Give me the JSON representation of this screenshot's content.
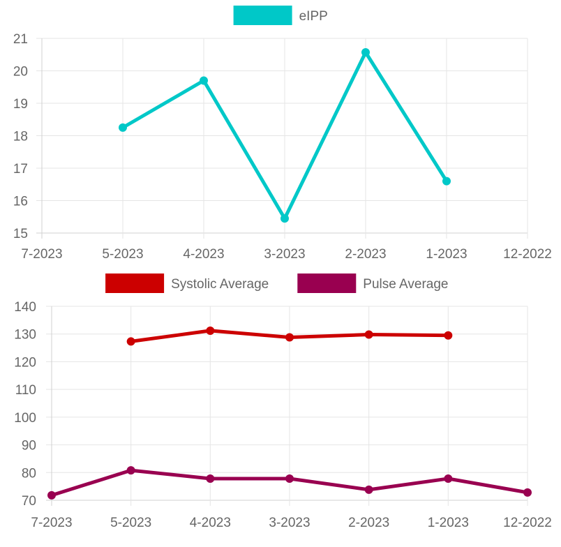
{
  "chart_data": [
    {
      "type": "line",
      "categories": [
        "7-2023",
        "5-2023",
        "4-2023",
        "3-2023",
        "2-2023",
        "1-2023",
        "12-2022"
      ],
      "ylim": [
        15,
        21
      ],
      "yticks": [
        15,
        16,
        17,
        18,
        19,
        20,
        21
      ],
      "legend_position": "top",
      "grid": true,
      "series": [
        {
          "name": "eIPP",
          "color": "#00c8c8",
          "values": [
            null,
            18.25,
            19.7,
            15.45,
            20.57,
            16.6,
            null
          ]
        }
      ]
    },
    {
      "type": "line",
      "categories": [
        "7-2023",
        "5-2023",
        "4-2023",
        "3-2023",
        "2-2023",
        "1-2023",
        "12-2022"
      ],
      "ylim": [
        70,
        140
      ],
      "yticks": [
        70,
        80,
        90,
        100,
        110,
        120,
        130,
        140
      ],
      "legend_position": "top",
      "grid": true,
      "series": [
        {
          "name": "Systolic Average",
          "color": "#cc0000",
          "values": [
            null,
            127.3,
            131.2,
            128.8,
            129.8,
            129.5,
            null
          ]
        },
        {
          "name": "Pulse Average",
          "color": "#990050",
          "values": [
            71.8,
            80.8,
            77.8,
            77.8,
            73.8,
            77.8,
            72.8
          ]
        }
      ]
    }
  ]
}
